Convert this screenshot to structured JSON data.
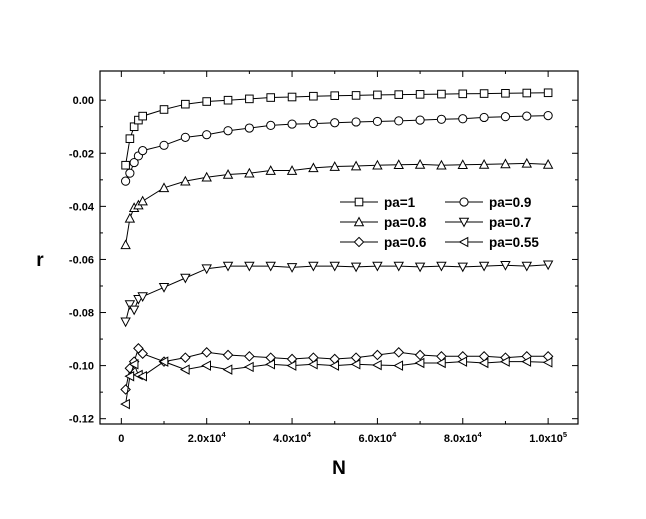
{
  "chart_data": {
    "type": "line",
    "xlabel": "N",
    "ylabel": "r",
    "xlim": [
      -5000,
      107000
    ],
    "ylim": [
      -0.122,
      0.011
    ],
    "x_ticks": [
      {
        "value": 0,
        "mantissa": "0",
        "exp": ""
      },
      {
        "value": 20000,
        "mantissa": "2.0x10",
        "exp": "4"
      },
      {
        "value": 40000,
        "mantissa": "4.0x10",
        "exp": "4"
      },
      {
        "value": 60000,
        "mantissa": "6.0x10",
        "exp": "4"
      },
      {
        "value": 80000,
        "mantissa": "8.0x10",
        "exp": "4"
      },
      {
        "value": 100000,
        "mantissa": "1.0x10",
        "exp": "5"
      }
    ],
    "y_ticks": [
      {
        "value": 0.0,
        "label": "0.00"
      },
      {
        "value": -0.02,
        "label": "-0.02"
      },
      {
        "value": -0.04,
        "label": "-0.04"
      },
      {
        "value": -0.06,
        "label": "-0.06"
      },
      {
        "value": -0.08,
        "label": "-0.08"
      },
      {
        "value": -0.1,
        "label": "-0.10"
      },
      {
        "value": -0.12,
        "label": "-0.12"
      }
    ],
    "grid": false,
    "legend_position": "right-middle",
    "x": [
      1000,
      2000,
      3000,
      4000,
      5000,
      10000,
      15000,
      20000,
      25000,
      30000,
      35000,
      40000,
      45000,
      50000,
      55000,
      60000,
      65000,
      70000,
      75000,
      80000,
      85000,
      90000,
      95000,
      100000
    ],
    "series": [
      {
        "name": "pa=1",
        "marker": "square",
        "values": [
          -0.0245,
          -0.0145,
          -0.01,
          -0.0075,
          -0.006,
          -0.0035,
          -0.0015,
          -0.0005,
          0.0,
          0.0005,
          0.001,
          0.0012,
          0.0015,
          0.0017,
          0.0018,
          0.002,
          0.0021,
          0.0022,
          0.0023,
          0.0024,
          0.0025,
          0.0026,
          0.0027,
          0.0028
        ]
      },
      {
        "name": "pa=0.9",
        "marker": "circle",
        "values": [
          -0.0305,
          -0.0275,
          -0.0235,
          -0.021,
          -0.019,
          -0.017,
          -0.014,
          -0.013,
          -0.0115,
          -0.0105,
          -0.0095,
          -0.009,
          -0.0088,
          -0.0085,
          -0.0082,
          -0.008,
          -0.0078,
          -0.0075,
          -0.0072,
          -0.007,
          -0.0065,
          -0.0062,
          -0.006,
          -0.0058
        ]
      },
      {
        "name": "pa=0.8",
        "marker": "triangle-up",
        "values": [
          -0.0545,
          -0.0445,
          -0.0405,
          -0.0395,
          -0.038,
          -0.033,
          -0.0305,
          -0.029,
          -0.028,
          -0.0275,
          -0.0265,
          -0.0265,
          -0.0255,
          -0.025,
          -0.0248,
          -0.0245,
          -0.0243,
          -0.0242,
          -0.0245,
          -0.0243,
          -0.0242,
          -0.024,
          -0.0238,
          -0.0242
        ]
      },
      {
        "name": "pa=0.7",
        "marker": "triangle-down",
        "values": [
          -0.0835,
          -0.077,
          -0.079,
          -0.075,
          -0.074,
          -0.0705,
          -0.067,
          -0.0635,
          -0.0625,
          -0.0625,
          -0.0625,
          -0.063,
          -0.0625,
          -0.0625,
          -0.0628,
          -0.0625,
          -0.0625,
          -0.0628,
          -0.0625,
          -0.0628,
          -0.0625,
          -0.0622,
          -0.0625,
          -0.062
        ]
      },
      {
        "name": "pa=0.6",
        "marker": "diamond",
        "values": [
          -0.109,
          -0.101,
          -0.0985,
          -0.0935,
          -0.0955,
          -0.0985,
          -0.097,
          -0.095,
          -0.096,
          -0.0965,
          -0.097,
          -0.0975,
          -0.097,
          -0.0975,
          -0.097,
          -0.096,
          -0.095,
          -0.096,
          -0.0965,
          -0.0965,
          -0.0965,
          -0.097,
          -0.0965,
          -0.0965
        ]
      },
      {
        "name": "pa=0.55",
        "marker": "triangle-left",
        "values": [
          -0.1145,
          -0.104,
          -0.0995,
          -0.1035,
          -0.104,
          -0.0985,
          -0.1015,
          -0.1,
          -0.1015,
          -0.1005,
          -0.0995,
          -0.1,
          -0.0995,
          -0.1,
          -0.0995,
          -0.0998,
          -0.1,
          -0.099,
          -0.099,
          -0.0985,
          -0.099,
          -0.0985,
          -0.0985,
          -0.0988
        ]
      }
    ]
  }
}
